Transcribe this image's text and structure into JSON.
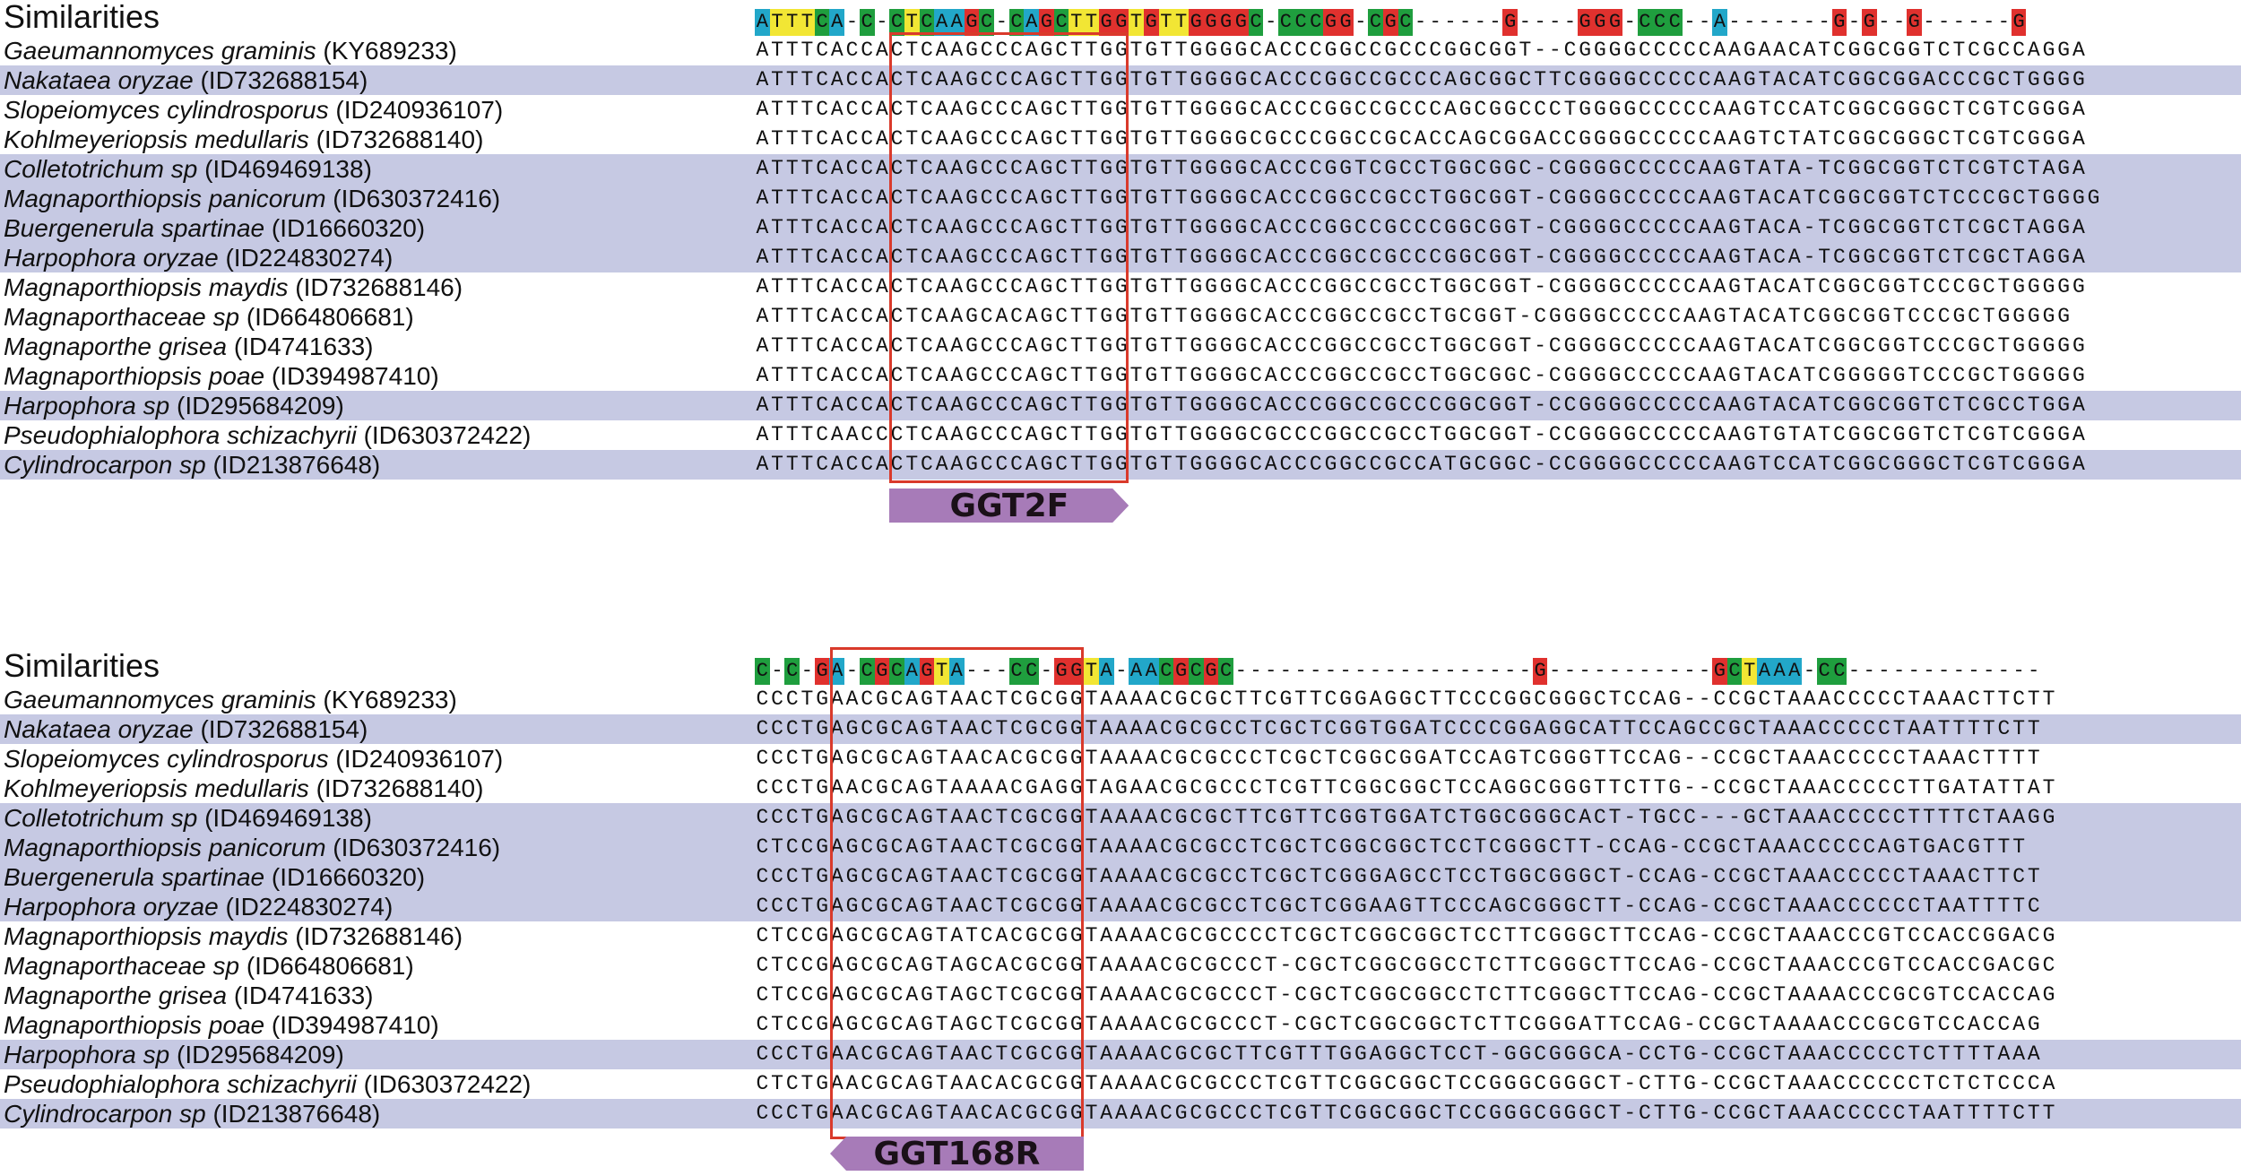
{
  "colors": {
    "band": "#c6c9e3",
    "A": "#22a7c9",
    "C": "#1f9e3e",
    "G": "#e0312e",
    "T": "#f2e634",
    "box": "#d93a2b",
    "arrow": "#a77bb8"
  },
  "panels": [
    {
      "title": "Similarities",
      "consensus": "ATTTCA-C-CTCAAGC-CAGCTTGGTGTTGGGGC-CCCGG-CGC------G----GGG-CCC--A-------G-G--G------G",
      "primer": {
        "name": "GGT2F",
        "direction": "right"
      },
      "rows": [
        {
          "genus": "Gaeumannomyces graminis",
          "id": "(KY689233)",
          "sequence": "ATTTCACCACTCAAGCCCAGCTTGGTGTTGGGGCACCCGGCCGCCCGGCGGT--CGGGGCCCCCAAGAACATCGGCGGTCTCGCCAGGA",
          "band": false
        },
        {
          "genus": "Nakataea oryzae",
          "id": "(ID732688154)",
          "sequence": "ATTTCACCACTCAAGCCCAGCTTGGTGTTGGGGCACCCGGCCGCCCAGCGGCTTCGGGGCCCCCAAGTACATCGGCGGACCCGCTGGGG",
          "band": true
        },
        {
          "genus": "Slopeiomyces cylindrosporus",
          "id": "(ID240936107)",
          "sequence": "ATTTCACCACTCAAGCCCAGCTTGGTGTTGGGGCACCCGGCCGCCCAGCGGCCCTGGGGCCCCCAAGTCCATCGGCGGGCTCGTCGGGA",
          "band": false
        },
        {
          "genus": "Kohlmeyeriopsis medullaris",
          "id": "(ID732688140)",
          "sequence": "ATTTCACCACTCAAGCCCAGCTTGGTGTTGGGGCGCCCGGCCGCACCAGCGGACCGGGGCCCCCAAGTCTATCGGCGGGCTCGTCGGGA",
          "band": false
        },
        {
          "genus": "Colletotrichum sp",
          "id": "(ID469469138)",
          "sequence": "ATTTCACCACTCAAGCCCAGCTTGGTGTTGGGGCACCCGGTCGCCTGGCGGC-CGGGGCCCCCAAGTATA-TCGGCGGTCTCGTCTAGA",
          "band": true
        },
        {
          "genus": "Magnaporthiopsis panicorum",
          "id": "(ID630372416)",
          "sequence": "ATTTCACCACTCAAGCCCAGCTTGGTGTTGGGGCACCCGGCCGCCTGGCGGT-CGGGGCCCCCAAGTACATCGGCGGTCTCCCGCTGGGG",
          "band": true
        },
        {
          "genus": "Buergenerula spartinae",
          "id": "(ID16660320)",
          "sequence": "ATTTCACCACTCAAGCCCAGCTTGGTGTTGGGGCACCCGGCCGCCCGGCGGT-CGGGGCCCCCAAGTACA-TCGGCGGTCTCGCTAGGA",
          "band": true
        },
        {
          "genus": "Harpophora oryzae",
          "id": "(ID224830274)",
          "sequence": "ATTTCACCACTCAAGCCCAGCTTGGTGTTGGGGCACCCGGCCGCCCGGCGGT-CGGGGCCCCCAAGTACA-TCGGCGGTCTCGCTAGGA",
          "band": true
        },
        {
          "genus": "Magnaporthiopsis maydis",
          "id": "(ID732688146)",
          "sequence": "ATTTCACCACTCAAGCCCAGCTTGGTGTTGGGGCACCCGGCCGCCTGGCGGT-CGGGGCCCCCAAGTACATCGGCGGTCCCGCTGGGGG",
          "band": false
        },
        {
          "genus": "Magnaporthaceae sp",
          "id": "(ID664806681)",
          "sequence": "ATTTCACCACTCAAGCACAGCTTGGTGTTGGGGCACCCGGCCGCCTGCGGT-CGGGGCCCCCAAGTACATCGGCGGTCCCGCTGGGGG",
          "band": false
        },
        {
          "genus": "Magnaporthe grisea",
          "id": "(ID4741633)",
          "sequence": "ATTTCACCACTCAAGCCCAGCTTGGTGTTGGGGCACCCGGCCGCCTGGCGGT-CGGGGCCCCCAAGTACATCGGCGGTCCCGCTGGGGG",
          "band": false
        },
        {
          "genus": "Magnaporthiopsis poae",
          "id": "(ID394987410)",
          "sequence": "ATTTCACCACTCAAGCCCAGCTTGGTGTTGGGGCACCCGGCCGCCTGGCGGC-CGGGGCCCCCAAGTACATCGGGGGTCCCGCTGGGGG",
          "band": false
        },
        {
          "genus": "Harpophora sp",
          "id": "(ID295684209)",
          "sequence": "ATTTCACCACTCAAGCCCAGCTTGGTGTTGGGGCACCCGGCCGCCCGGCGGT-CCGGGGCCCCCAAGTACATCGGCGGTCTCGCCTGGA",
          "band": true
        },
        {
          "genus": "Pseudophialophora schizachyrii",
          "id": "(ID630372422)",
          "sequence": "ATTTCAACCCTCAAGCCCAGCTTGGTGTTGGGGCGCCCGGCCGCCTGGCGGT-CCGGGGCCCCCAAGTGTATCGGCGGTCTCGTCGGGA",
          "band": false
        },
        {
          "genus": "Cylindrocarpon sp",
          "id": "(ID213876648)",
          "sequence": "ATTTCACCACTCAAGCCCAGCTTGGTGTTGGGGCACCCGGCCGCCATGCGGC-CCGGGGCCCCCAAGTCCATCGGCGGGCTCGTCGGGA",
          "band": true
        }
      ]
    },
    {
      "title": "Similarities",
      "consensus": "C-C-GA-CGCAGTA---CC-GGTA-AACGCGC--------------------G-----------GCTAAA-CC-------------",
      "primer": {
        "name": "GGT168R",
        "direction": "left"
      },
      "rows": [
        {
          "genus": "Gaeumannomyces graminis",
          "id": "(KY689233)",
          "sequence": "CCCTGAACGCAGTAACTCGCGGTAAAACGCGCTTCGTTCGGAGGCTTCCCGGCGGGCTCCAG--CCGCTAAACCCCCTAAACTTCTT",
          "band": false
        },
        {
          "genus": "Nakataea oryzae",
          "id": "(ID732688154)",
          "sequence": "CCCTGAGCGCAGTAACTCGCGGTAAAACGCGCCTCGCTCGGTGGATCCCCGGAGGCATTCCAGCCGCTAAACCCCCTAATTTTCTT",
          "band": true
        },
        {
          "genus": "Slopeiomyces cylindrosporus",
          "id": "(ID240936107)",
          "sequence": "CCCTGAGCGCAGTAACACGCGGTAAAACGCGCCCTCGCTCGGCGGATCCAGTCGGGTTCCAG--CCGCTAAACCCCCTAAACTTTT",
          "band": false
        },
        {
          "genus": "Kohlmeyeriopsis medullaris",
          "id": "(ID732688140)",
          "sequence": "CCCTGAACGCAGTAAAACGAGGTAGAACGCGCCCTCGTTCGGCGGCTCCAGGCGGGTTCTTG--CCGCTAAACCCCCTTGATATTAT",
          "band": false
        },
        {
          "genus": "Colletotrichum sp",
          "id": "(ID469469138)",
          "sequence": "CCCTGAGCGCAGTAACTCGCGGTAAAACGCGCTTCGTTCGGTGGATCTGGCGGGCACT-TGCC---GCTAAACCCCCTTTTCTAAGG",
          "band": true
        },
        {
          "genus": "Magnaporthiopsis panicorum",
          "id": "(ID630372416)",
          "sequence": "CTCCGAGCGCAGTAACTCGCGGTAAAACGCGCCTCGCTCGGCGGCTCCTCGGGCTT-CCAG-CCGCTAAACCCCCAGTGACGTTT",
          "band": true
        },
        {
          "genus": "Buergenerula spartinae",
          "id": "(ID16660320)",
          "sequence": "CCCTGAGCGCAGTAACTCGCGGTAAAACGCGCCTCGCTCGGGAGCCTCCTGGCGGGCT-CCAG-CCGCTAAACCCCCTAAACTTCT",
          "band": true
        },
        {
          "genus": "Harpophora oryzae",
          "id": "(ID224830274)",
          "sequence": "CCCTGAGCGCAGTAACTCGCGGTAAAACGCGCCTCGCTCGGAAGTTCCCAGCGGGCTT-CCAG-CCGCTAAACCCCCCTAATTTTC",
          "band": true
        },
        {
          "genus": "Magnaporthiopsis maydis",
          "id": "(ID732688146)",
          "sequence": "CTCCGAGCGCAGTATCACGCGGTAAAACGCGCCCCTCGCTCGGCGGCTCCTTCGGGCTTCCAG-CCGCTAAACCCGTCCACCGGACG",
          "band": false
        },
        {
          "genus": "Magnaporthaceae sp",
          "id": "(ID664806681)",
          "sequence": "CTCCGAGCGCAGTAGCACGCGGTAAAACGCGCCCT-CGCTCGGCGGCCTCTTCGGGCTTCCAG-CCGCTAAACCCGTCCACCGACGC",
          "band": false
        },
        {
          "genus": "Magnaporthe grisea",
          "id": "(ID4741633)",
          "sequence": "CTCCGAGCGCAGTAGCTCGCGGTAAAACGCGCCCT-CGCTCGGCGGCCTCTTCGGGCTTCCAG-CCGCTAAAACCCGCGTCCACCAG",
          "band": false
        },
        {
          "genus": "Magnaporthiopsis poae",
          "id": "(ID394987410)",
          "sequence": "CTCCGAGCGCAGTAGCTCGCGGTAAAACGCGCCCT-CGCTCGGCGGCTCTTCGGGATTCCAG-CCGCTAAAACCCGCGTCCACCAG",
          "band": false
        },
        {
          "genus": "Harpophora sp",
          "id": "(ID295684209)",
          "sequence": "CCCTGAACGCAGTAACTCGCGGTAAAACGCGCTTCGTTTGGAGGCTCCT-GGCGGGCA-CCTG-CCGCTAAACCCCCTCTTTTAAA",
          "band": true
        },
        {
          "genus": "Pseudophialophora schizachyrii",
          "id": "(ID630372422)",
          "sequence": "CTCTGAACGCAGTAACACGCGGTAAAACGCGCCCTCGTTCGGCGGCTCCGGGCGGGCT-CTTG-CCGCTAAACCCCCCTCTCTCCCA",
          "band": false
        },
        {
          "genus": "Cylindrocarpon sp",
          "id": "(ID213876648)",
          "sequence": "CCCTGAACGCAGTAACACGCGGTAAAACGCGCCCTCGTTCGGCGGCTCCGGGCGGGCT-CTTG-CCGCTAAACCCCCTAATTTTCTT",
          "band": true
        }
      ]
    }
  ]
}
